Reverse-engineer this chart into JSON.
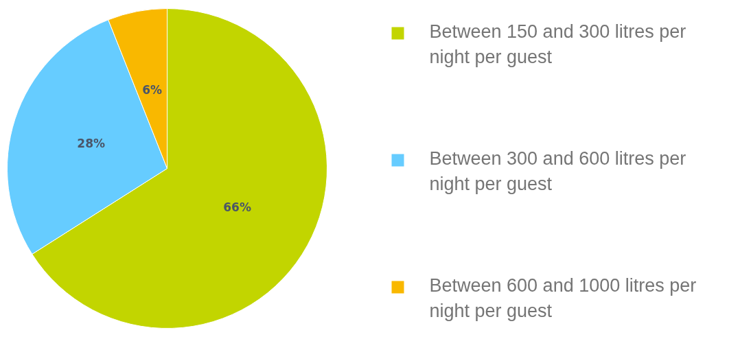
{
  "chart_data": {
    "type": "pie",
    "categories": [
      "Between 150 and 300 litres per night per guest",
      "Between 300 and 600 litres per night per guest",
      "Between 600 and 1000 litres per night per guest"
    ],
    "values": [
      66,
      28,
      6
    ],
    "colors": [
      "#c2d500",
      "#66ccff",
      "#f9b800"
    ],
    "value_labels": [
      "66%",
      "28%",
      "6%"
    ],
    "legend": "right"
  }
}
